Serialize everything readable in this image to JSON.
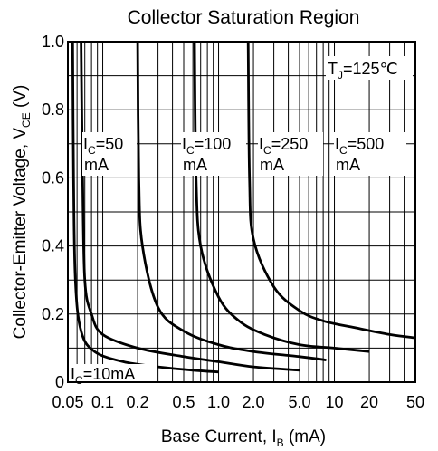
{
  "chart_data": {
    "type": "line",
    "title": "Collector Saturation Region",
    "xlabel": {
      "main": "Base Current, I",
      "sub": "B",
      "unit": " (mA)"
    },
    "ylabel": {
      "main": "Collector-Emitter Voltage, V",
      "sub": "CE",
      "unit": " (V)"
    },
    "x_scale": "log",
    "xlim": [
      0.05,
      50
    ],
    "ylim": [
      0,
      1.0
    ],
    "x_ticks": [
      0.05,
      0.1,
      0.2,
      0.5,
      1.0,
      2.0,
      5.0,
      10,
      20,
      50
    ],
    "x_tick_labels": [
      "0.05",
      "0.1",
      "0.2",
      "0.5",
      "1.0",
      "2.0",
      "5.0",
      "10",
      "20",
      "50"
    ],
    "y_ticks": [
      0,
      0.2,
      0.4,
      0.6,
      0.8,
      1.0
    ],
    "y_tick_labels": [
      "0",
      "0.2",
      "0.4",
      "0.6",
      "0.8",
      "1.0"
    ],
    "grid": true,
    "annotation": {
      "main": "T",
      "sub": "J",
      "rest": "=125℃"
    },
    "series": [
      {
        "name": {
          "main": "I",
          "sub": "C",
          "rest": "=10mA"
        },
        "points": [
          [
            0.055,
            1.0
          ],
          [
            0.056,
            0.6
          ],
          [
            0.058,
            0.3
          ],
          [
            0.065,
            0.15
          ],
          [
            0.085,
            0.09
          ],
          [
            0.15,
            0.06
          ],
          [
            0.3,
            0.045
          ],
          [
            0.6,
            0.035
          ],
          [
            1.0,
            0.03
          ]
        ]
      },
      {
        "name": {
          "main": "I",
          "sub": "C",
          "rest": "=50"
        },
        "name2": "mA",
        "points": [
          [
            0.065,
            1.0
          ],
          [
            0.067,
            0.6
          ],
          [
            0.07,
            0.3
          ],
          [
            0.08,
            0.2
          ],
          [
            0.1,
            0.14
          ],
          [
            0.2,
            0.1
          ],
          [
            0.5,
            0.075
          ],
          [
            1.0,
            0.06
          ],
          [
            2.0,
            0.045
          ],
          [
            5.0,
            0.035
          ]
        ]
      },
      {
        "name": {
          "main": "I",
          "sub": "C",
          "rest": "=100"
        },
        "name2": "mA",
        "points": [
          [
            0.2,
            1.0
          ],
          [
            0.205,
            0.6
          ],
          [
            0.22,
            0.4
          ],
          [
            0.3,
            0.22
          ],
          [
            0.5,
            0.15
          ],
          [
            1.0,
            0.11
          ],
          [
            2.0,
            0.09
          ],
          [
            5.0,
            0.075
          ],
          [
            8.5,
            0.065
          ]
        ]
      },
      {
        "name": {
          "main": "I",
          "sub": "C",
          "rest": "=250"
        },
        "name2": "mA",
        "points": [
          [
            0.62,
            1.0
          ],
          [
            0.64,
            0.6
          ],
          [
            0.7,
            0.4
          ],
          [
            1.0,
            0.25
          ],
          [
            1.5,
            0.18
          ],
          [
            2.5,
            0.14
          ],
          [
            5.0,
            0.11
          ],
          [
            10,
            0.1
          ],
          [
            20,
            0.09
          ]
        ]
      },
      {
        "name": {
          "main": "I",
          "sub": "C",
          "rest": "=500"
        },
        "name2": "mA",
        "points": [
          [
            1.8,
            1.0
          ],
          [
            1.85,
            0.6
          ],
          [
            2.0,
            0.42
          ],
          [
            3.0,
            0.28
          ],
          [
            5.0,
            0.21
          ],
          [
            8.0,
            0.18
          ],
          [
            15,
            0.16
          ],
          [
            30,
            0.14
          ],
          [
            50,
            0.13
          ]
        ]
      }
    ]
  }
}
